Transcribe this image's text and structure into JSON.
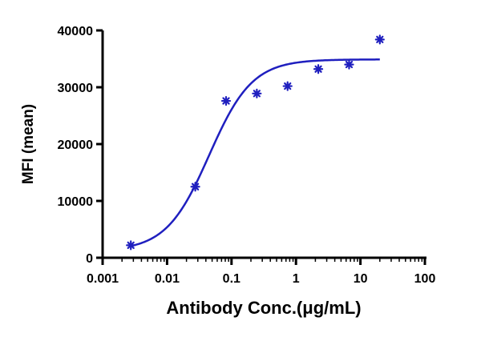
{
  "chart_data": {
    "type": "scatter",
    "xlabel": "Antibody Conc.(μg/mL)",
    "ylabel": "MFI (mean)",
    "x_scale": "log",
    "xlim": [
      0.001,
      100
    ],
    "ylim": [
      0,
      40000
    ],
    "x_ticks": [
      0.001,
      0.01,
      0.1,
      1,
      10,
      100
    ],
    "x_tick_labels": [
      "0.001",
      "0.01",
      "0.1",
      "1",
      "10",
      "100"
    ],
    "y_ticks": [
      0,
      10000,
      20000,
      30000,
      40000
    ],
    "y_tick_labels": [
      "0",
      "10000",
      "20000",
      "30000",
      "40000"
    ],
    "grid": false,
    "legend": "none",
    "series": [
      {
        "color": "#1f1fbf",
        "marker": "asterisk",
        "points": [
          {
            "x": 0.00274,
            "y": 2200
          },
          {
            "x": 0.0274,
            "y": 12500
          },
          {
            "x": 0.0823,
            "y": 27600
          },
          {
            "x": 0.247,
            "y": 28900
          },
          {
            "x": 0.741,
            "y": 30200
          },
          {
            "x": 2.22,
            "y": 33200
          },
          {
            "x": 6.67,
            "y": 34000
          },
          {
            "x": 20,
            "y": 38400
          }
        ],
        "fit_curve": {
          "model": "4PL",
          "bottom": 1200,
          "top": 34900,
          "ec50": 0.045,
          "hill": 1.3,
          "x_range": [
            0.00274,
            20
          ],
          "color": "#1f1fbf"
        }
      }
    ]
  }
}
